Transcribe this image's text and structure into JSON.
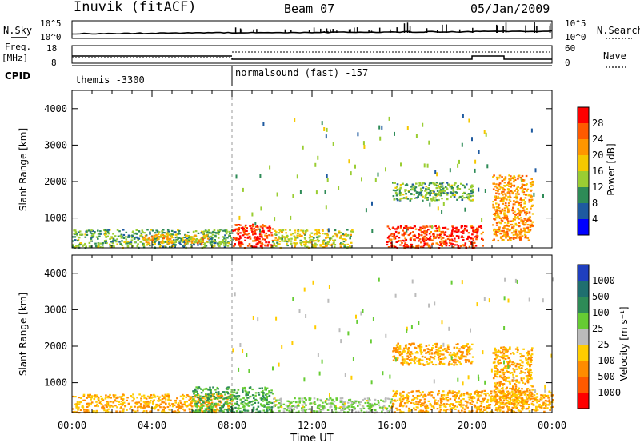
{
  "header": {
    "station": "Inuvik (fitACF)",
    "beam": "Beam 07",
    "date": "05/Jan/2009"
  },
  "panels": {
    "nsky_label": "N.Sky",
    "nsearch_label": "N.Search",
    "nsky_ticks": [
      "10^5",
      "10^0"
    ],
    "freq_label": "Freq.",
    "freq_unit": "[MHz]",
    "freq_ticks": [
      "18",
      "8"
    ],
    "nave_label": "Nave",
    "nave_ticks": [
      "60",
      "0"
    ],
    "cpid_label": "CPID",
    "cpid_segments": [
      {
        "name": "themis -3300",
        "start_hour": 0,
        "end_hour": 8
      },
      {
        "name": "normalsound (fast) -157",
        "start_hour": 8,
        "end_hour": 24
      }
    ]
  },
  "axes": {
    "xlabel": "Time UT",
    "x_ticks": [
      "00:00",
      "04:00",
      "08:00",
      "12:00",
      "16:00",
      "20:00",
      "00:00"
    ],
    "ylabel": "Slant Range [km]",
    "y_ticks": [
      "4000",
      "3000",
      "2000",
      "1000"
    ]
  },
  "colorbars": {
    "power": {
      "label": "Power [dB]",
      "ticks": [
        "28",
        "24",
        "20",
        "16",
        "12",
        "8",
        "4"
      ],
      "colors": [
        "#ff0000",
        "#ff5a00",
        "#ff9600",
        "#f5c800",
        "#9acd32",
        "#2e8b57",
        "#1e5aa0",
        "#0000ff"
      ]
    },
    "velocity": {
      "label": "Velocity [m s⁻¹]",
      "ticks": [
        "1000",
        "500",
        "100",
        "25",
        "-25",
        "-100",
        "-500",
        "-1000"
      ],
      "colors": [
        "#1f3fbf",
        "#1f6f6f",
        "#2e8b57",
        "#66cc33",
        "#bbbbbb",
        "#ffcc00",
        "#ff8c00",
        "#ff5a00",
        "#ff0000"
      ]
    }
  },
  "chart_data": [
    {
      "type": "heatmap",
      "title": "Power",
      "xlabel": "Time UT",
      "ylabel": "Slant Range [km]",
      "xlim": [
        0,
        24
      ],
      "ylim": [
        180,
        4500
      ],
      "colorbar": {
        "label": "Power [dB]",
        "range": [
          0,
          32
        ]
      },
      "regions": [
        {
          "t0": 0.0,
          "t1": 8.0,
          "r0": 200,
          "r1": 700,
          "level": 14
        },
        {
          "t0": 3.5,
          "t1": 5.0,
          "r0": 300,
          "r1": 600,
          "level": 22
        },
        {
          "t0": 5.5,
          "t1": 6.8,
          "r0": 300,
          "r1": 550,
          "level": 22
        },
        {
          "t0": 8.0,
          "t1": 10.0,
          "r0": 200,
          "r1": 850,
          "level": 30
        },
        {
          "t0": 10.0,
          "t1": 14.0,
          "r0": 200,
          "r1": 700,
          "level": 18
        },
        {
          "t0": 15.7,
          "t1": 20.5,
          "r0": 200,
          "r1": 800,
          "level": 30
        },
        {
          "t0": 16.0,
          "t1": 20.0,
          "r0": 1500,
          "r1": 2000,
          "level": 14
        },
        {
          "t0": 21.0,
          "t1": 23.0,
          "r0": 400,
          "r1": 2200,
          "level": 24
        }
      ]
    },
    {
      "type": "heatmap",
      "title": "Velocity",
      "xlabel": "Time UT",
      "ylabel": "Slant Range [km]",
      "xlim": [
        0,
        24
      ],
      "ylim": [
        180,
        4500
      ],
      "colorbar": {
        "label": "Velocity [m s⁻¹]",
        "range": [
          -1000,
          1000
        ]
      },
      "regions": [
        {
          "t0": 0.0,
          "t1": 8.0,
          "r0": 200,
          "r1": 700,
          "level": -100
        },
        {
          "t0": 6.0,
          "t1": 10.0,
          "r0": 200,
          "r1": 900,
          "level": 100
        },
        {
          "t0": 10.0,
          "t1": 16.0,
          "r0": 200,
          "r1": 600,
          "level": 25
        },
        {
          "t0": 16.0,
          "t1": 20.0,
          "r0": 1500,
          "r1": 2100,
          "level": -100
        },
        {
          "t0": 16.0,
          "t1": 24.0,
          "r0": 200,
          "r1": 800,
          "level": -100
        },
        {
          "t0": 21.0,
          "t1": 23.0,
          "r0": 400,
          "r1": 2000,
          "level": -100
        }
      ]
    }
  ]
}
